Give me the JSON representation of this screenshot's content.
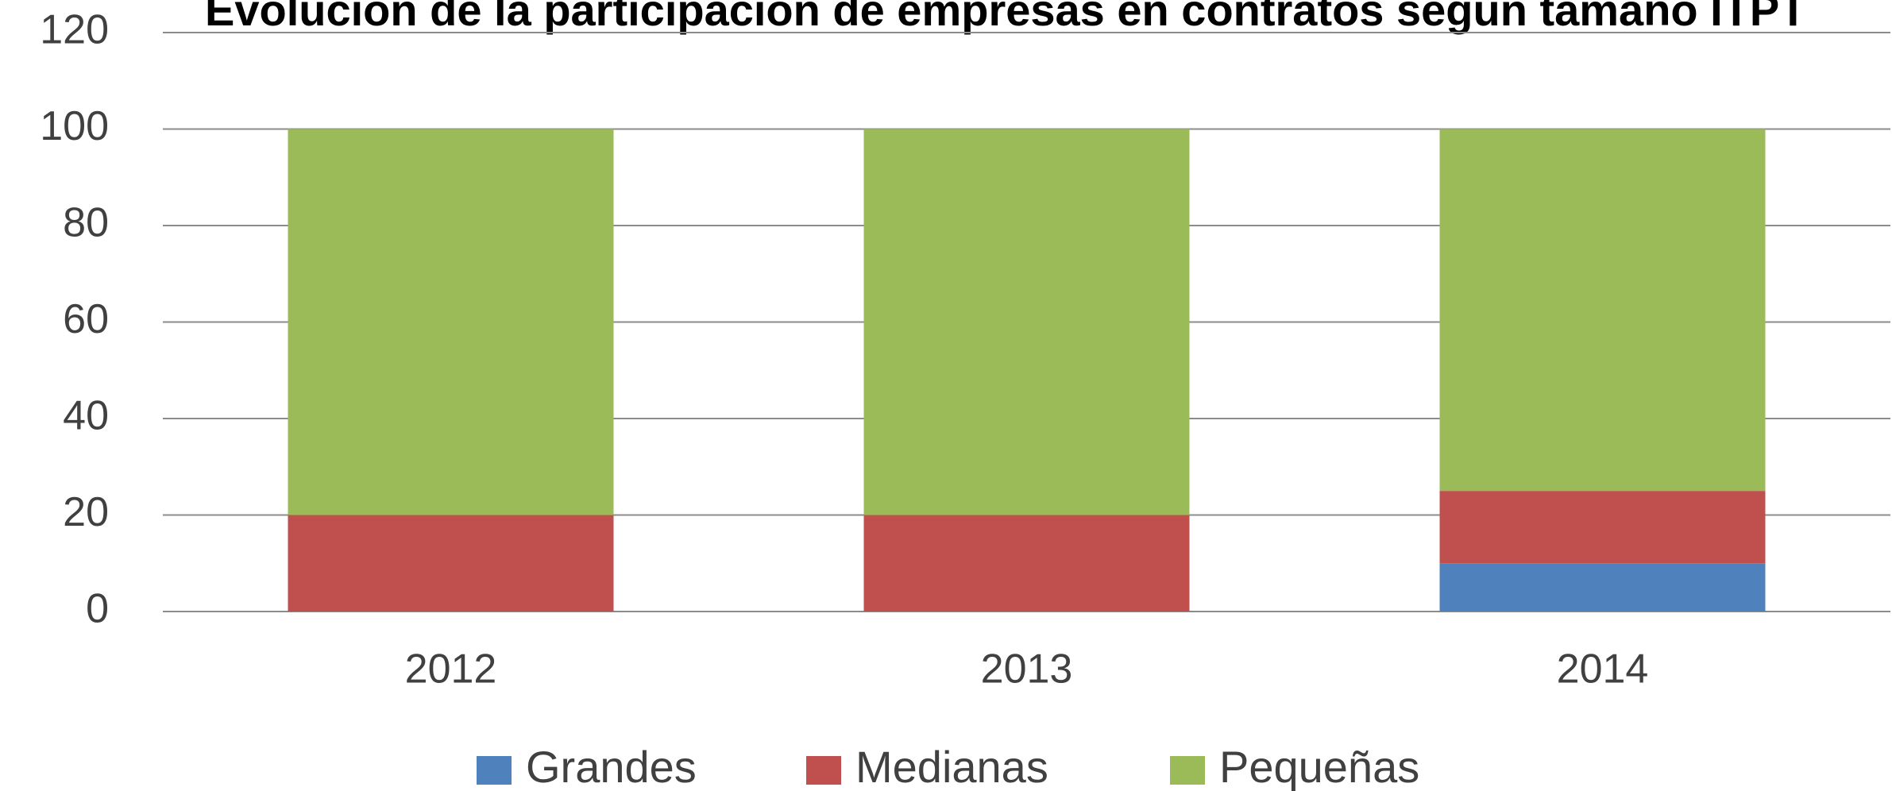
{
  "chart_data": {
    "type": "stacked_bar",
    "title": "Evolución de la participación de empresas en contratos según tamaño ITPT",
    "categories": [
      "2012",
      "2013",
      "2014"
    ],
    "series": [
      {
        "name": "Grandes",
        "color": "#4f81bd",
        "values": [
          0,
          0,
          10
        ]
      },
      {
        "name": "Medianas",
        "color": "#c0504d",
        "values": [
          20,
          20,
          15
        ]
      },
      {
        "name": "Pequeñas",
        "color": "#9bbb59",
        "values": [
          80,
          80,
          75
        ]
      }
    ],
    "ylim": [
      0,
      120
    ],
    "yticks": [
      0,
      20,
      40,
      60,
      80,
      100,
      120
    ],
    "grid": true,
    "legend": "bottom"
  }
}
